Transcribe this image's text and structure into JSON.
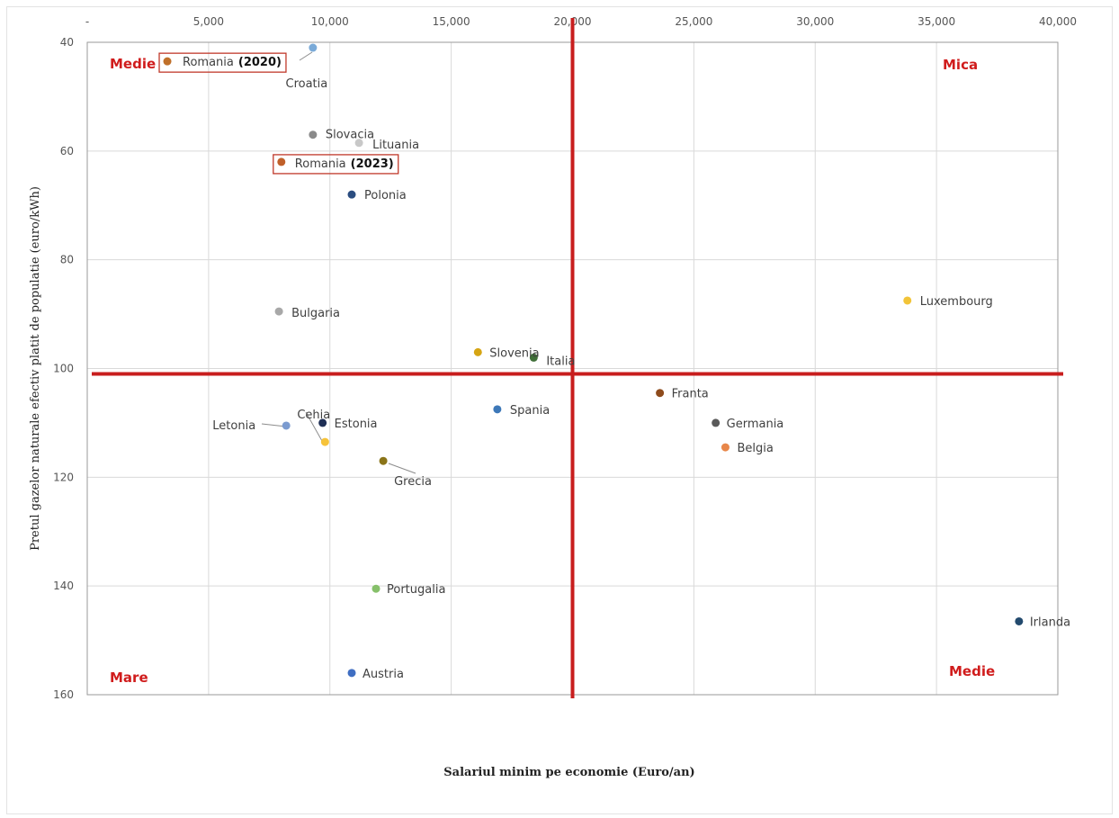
{
  "chart_data": {
    "type": "scatter",
    "title": "",
    "xlabel": "Salariul minim pe economie (Euro/an)",
    "ylabel": "Pretul gazelor naturale efectiv platit de populatie (euro/kWh)",
    "xlim": [
      0,
      40000
    ],
    "ylim": [
      40,
      160
    ],
    "y_inverted": true,
    "x_axis_position": "top",
    "x_ticks": [
      "-",
      "5,000",
      "10,000",
      "15,000",
      "20,000",
      "25,000",
      "30,000",
      "35,000",
      "40,000"
    ],
    "y_ticks": [
      "40",
      "60",
      "80",
      "100",
      "120",
      "140",
      "160"
    ],
    "grid": true,
    "legend": "none",
    "points": [
      {
        "label": "Romania",
        "year": "(2020)",
        "x": 3300,
        "y": 43.5,
        "color": "#c0702a"
      },
      {
        "label": "Croatia",
        "x": 9300,
        "y": 41,
        "color": "#7aaad8"
      },
      {
        "label": "Slovacia",
        "x": 9300,
        "y": 57,
        "color": "#8a8a8a"
      },
      {
        "label": "Lituania",
        "x": 11200,
        "y": 58.5,
        "color": "#c8c8c8"
      },
      {
        "label": "Romania",
        "year": "(2023)",
        "x": 8000,
        "y": 62,
        "color": "#c0602a"
      },
      {
        "label": "Polonia",
        "x": 10900,
        "y": 68,
        "color": "#2b4d80"
      },
      {
        "label": "Bulgaria",
        "x": 7900,
        "y": 89.5,
        "color": "#a8a8a8"
      },
      {
        "label": "Luxembourg",
        "x": 33800,
        "y": 87.5,
        "color": "#f2c438"
      },
      {
        "label": "Slovenia",
        "x": 16100,
        "y": 97,
        "color": "#d6a514"
      },
      {
        "label": "Italia",
        "x": 18400,
        "y": 98,
        "color": "#3f6f38"
      },
      {
        "label": "Franta",
        "x": 23600,
        "y": 104.5,
        "color": "#8e4b1c"
      },
      {
        "label": "Spania",
        "x": 16900,
        "y": 107.5,
        "color": "#3d78b8"
      },
      {
        "label": "Estonia",
        "x": 9700,
        "y": 110,
        "color": "#1f2f55"
      },
      {
        "label": "Letonia",
        "x": 8200,
        "y": 110.5,
        "color": "#7b9bd0"
      },
      {
        "label": "Cehia",
        "x": 9800,
        "y": 113.5,
        "color": "#f6c33a"
      },
      {
        "label": "Germania",
        "x": 25900,
        "y": 110,
        "color": "#5a5a5a"
      },
      {
        "label": "Belgia",
        "x": 26300,
        "y": 114.5,
        "color": "#e8874a"
      },
      {
        "label": "Grecia",
        "x": 12200,
        "y": 117,
        "color": "#8a7418"
      },
      {
        "label": "Portugalia",
        "x": 11900,
        "y": 140.5,
        "color": "#86c06a"
      },
      {
        "label": "Irlanda",
        "x": 38400,
        "y": 146.5,
        "color": "#234a6e"
      },
      {
        "label": "Austria",
        "x": 10900,
        "y": 156,
        "color": "#3f6ec2"
      }
    ],
    "reference_lines": {
      "x": 20000,
      "y": 101,
      "color": "#c81e1e"
    },
    "quadrant_labels": [
      {
        "text": "Medie",
        "position": "top-left"
      },
      {
        "text": "Mica",
        "position": "top-right"
      },
      {
        "text": "Mare",
        "position": "bottom-left"
      },
      {
        "text": "Medie",
        "position": "bottom-right"
      }
    ]
  }
}
